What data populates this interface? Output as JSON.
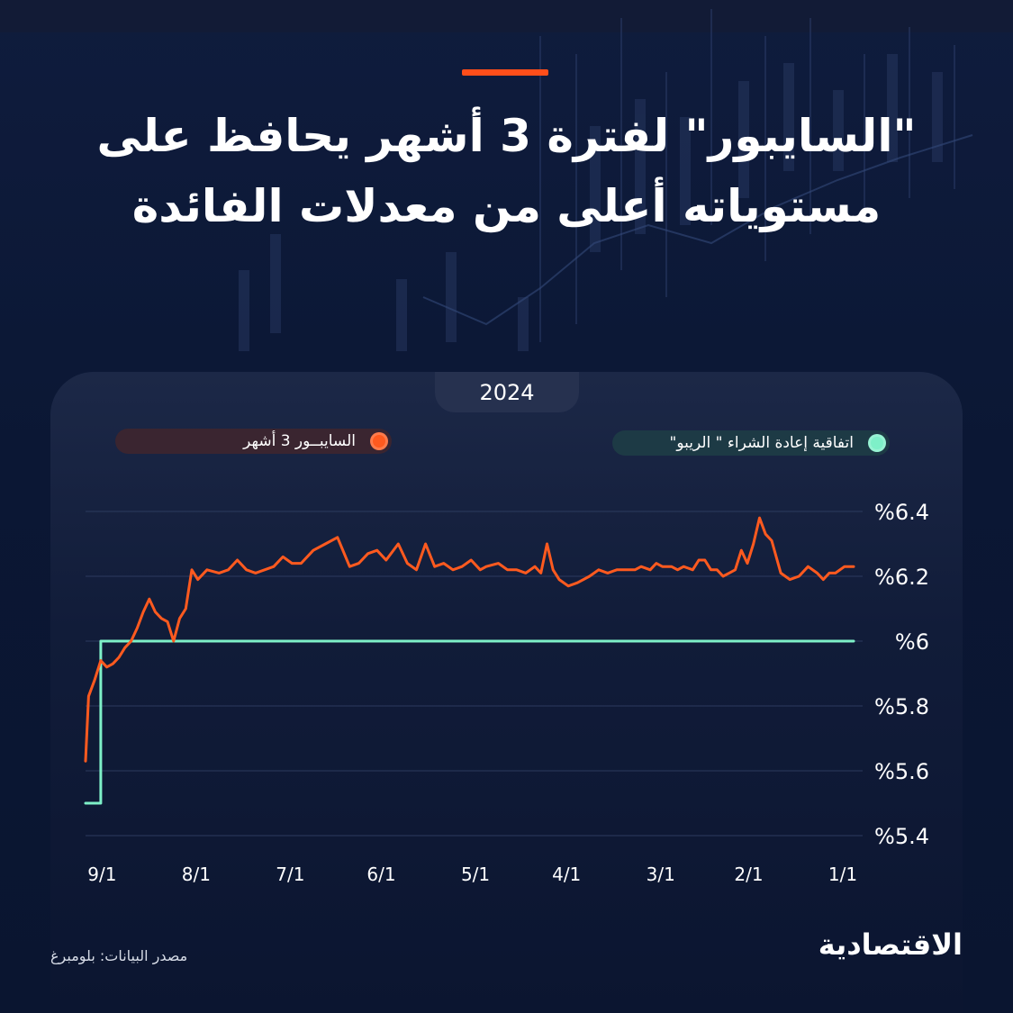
{
  "title_line1": "\"السايبور\" لفترة 3 أشهر يحافظ على",
  "title_line2": "مستوياته أعلى من معدلات الفائدة",
  "year": "2024",
  "source": "مصدر البيانات: بلومبرغ",
  "logo": "الاقتصادية",
  "colors": {
    "sibor": "#ff5a1f",
    "repo": "#7ef0c8",
    "accent": "#ff4e1a",
    "background": "#0b1734"
  },
  "chart_data": {
    "type": "line",
    "x_axis": "dates",
    "x_direction": "right-to-left",
    "x_range": [
      "2024-01-01",
      "2024-09-10"
    ],
    "xticks": [
      {
        "date": "2024-01-01",
        "label": "1/1"
      },
      {
        "date": "2024-02-01",
        "label": "2/1"
      },
      {
        "date": "2024-03-01",
        "label": "3/1"
      },
      {
        "date": "2024-04-01",
        "label": "4/1"
      },
      {
        "date": "2024-05-01",
        "label": "5/1"
      },
      {
        "date": "2024-06-01",
        "label": "6/1"
      },
      {
        "date": "2024-07-01",
        "label": "7/1"
      },
      {
        "date": "2024-08-01",
        "label": "8/1"
      },
      {
        "date": "2024-09-01",
        "label": "9/1"
      }
    ],
    "ylim": [
      5.4,
      6.4
    ],
    "yticks": [
      {
        "value": 5.4,
        "label": "%5.4"
      },
      {
        "value": 5.6,
        "label": "%5.6"
      },
      {
        "value": 5.8,
        "label": "%5.8"
      },
      {
        "value": 6.0,
        "label": "%6"
      },
      {
        "value": 6.2,
        "label": "%6.2"
      },
      {
        "value": 6.4,
        "label": "%6.4"
      }
    ],
    "grid": true,
    "series": [
      {
        "name": "السايبــور 3 أشهر",
        "color": "#ff5a1f",
        "points": [
          [
            "2024-01-01",
            6.23
          ],
          [
            "2024-01-04",
            6.23
          ],
          [
            "2024-01-07",
            6.21
          ],
          [
            "2024-01-09",
            6.21
          ],
          [
            "2024-01-11",
            6.19
          ],
          [
            "2024-01-13",
            6.21
          ],
          [
            "2024-01-16",
            6.23
          ],
          [
            "2024-01-19",
            6.2
          ],
          [
            "2024-01-22",
            6.19
          ],
          [
            "2024-01-25",
            6.21
          ],
          [
            "2024-01-28",
            6.31
          ],
          [
            "2024-01-30",
            6.33
          ],
          [
            "2024-02-01",
            6.38
          ],
          [
            "2024-02-03",
            6.3
          ],
          [
            "2024-02-05",
            6.24
          ],
          [
            "2024-02-07",
            6.28
          ],
          [
            "2024-02-09",
            6.22
          ],
          [
            "2024-02-11",
            6.21
          ],
          [
            "2024-02-13",
            6.2
          ],
          [
            "2024-02-15",
            6.22
          ],
          [
            "2024-02-17",
            6.22
          ],
          [
            "2024-02-19",
            6.25
          ],
          [
            "2024-02-21",
            6.25
          ],
          [
            "2024-02-23",
            6.22
          ],
          [
            "2024-02-26",
            6.23
          ],
          [
            "2024-02-28",
            6.22
          ],
          [
            "2024-03-01",
            6.23
          ],
          [
            "2024-03-04",
            6.23
          ],
          [
            "2024-03-06",
            6.24
          ],
          [
            "2024-03-08",
            6.22
          ],
          [
            "2024-03-11",
            6.23
          ],
          [
            "2024-03-13",
            6.22
          ],
          [
            "2024-03-16",
            6.22
          ],
          [
            "2024-03-19",
            6.22
          ],
          [
            "2024-03-22",
            6.21
          ],
          [
            "2024-03-25",
            6.22
          ],
          [
            "2024-03-28",
            6.2
          ],
          [
            "2024-04-01",
            6.18
          ],
          [
            "2024-04-04",
            6.17
          ],
          [
            "2024-04-07",
            6.19
          ],
          [
            "2024-04-09",
            6.22
          ],
          [
            "2024-04-11",
            6.3
          ],
          [
            "2024-04-13",
            6.21
          ],
          [
            "2024-04-15",
            6.23
          ],
          [
            "2024-04-18",
            6.21
          ],
          [
            "2024-04-21",
            6.22
          ],
          [
            "2024-04-24",
            6.22
          ],
          [
            "2024-04-27",
            6.24
          ],
          [
            "2024-05-01",
            6.23
          ],
          [
            "2024-05-03",
            6.22
          ],
          [
            "2024-05-06",
            6.25
          ],
          [
            "2024-05-09",
            6.23
          ],
          [
            "2024-05-12",
            6.22
          ],
          [
            "2024-05-15",
            6.24
          ],
          [
            "2024-05-18",
            6.23
          ],
          [
            "2024-05-21",
            6.3
          ],
          [
            "2024-05-24",
            6.22
          ],
          [
            "2024-05-27",
            6.24
          ],
          [
            "2024-05-30",
            6.3
          ],
          [
            "2024-06-03",
            6.25
          ],
          [
            "2024-06-06",
            6.28
          ],
          [
            "2024-06-09",
            6.27
          ],
          [
            "2024-06-12",
            6.24
          ],
          [
            "2024-06-15",
            6.23
          ],
          [
            "2024-06-19",
            6.32
          ],
          [
            "2024-06-23",
            6.3
          ],
          [
            "2024-06-27",
            6.28
          ],
          [
            "2024-07-01",
            6.24
          ],
          [
            "2024-07-04",
            6.24
          ],
          [
            "2024-07-07",
            6.26
          ],
          [
            "2024-07-10",
            6.23
          ],
          [
            "2024-07-13",
            6.22
          ],
          [
            "2024-07-16",
            6.21
          ],
          [
            "2024-07-19",
            6.22
          ],
          [
            "2024-07-22",
            6.25
          ],
          [
            "2024-07-25",
            6.22
          ],
          [
            "2024-07-28",
            6.21
          ],
          [
            "2024-08-01",
            6.22
          ],
          [
            "2024-08-04",
            6.19
          ],
          [
            "2024-08-06",
            6.22
          ],
          [
            "2024-08-08",
            6.1
          ],
          [
            "2024-08-10",
            6.07
          ],
          [
            "2024-08-12",
            6.0
          ],
          [
            "2024-08-14",
            6.06
          ],
          [
            "2024-08-16",
            6.07
          ],
          [
            "2024-08-18",
            6.09
          ],
          [
            "2024-08-20",
            6.13
          ],
          [
            "2024-08-22",
            6.09
          ],
          [
            "2024-08-24",
            6.04
          ],
          [
            "2024-08-26",
            6.0
          ],
          [
            "2024-08-28",
            5.98
          ],
          [
            "2024-08-30",
            5.95
          ],
          [
            "2024-09-01",
            5.93
          ],
          [
            "2024-09-03",
            5.92
          ],
          [
            "2024-09-05",
            5.94
          ],
          [
            "2024-09-07",
            5.88
          ],
          [
            "2024-09-09",
            5.83
          ],
          [
            "2024-09-10",
            5.63
          ]
        ]
      },
      {
        "name": "اتفاقية إعادة الشراء \" الريبو\"",
        "color": "#7ef0c8",
        "points": [
          [
            "2024-01-01",
            6.0
          ],
          [
            "2024-09-05",
            6.0
          ],
          [
            "2024-09-05",
            5.5
          ],
          [
            "2024-09-10",
            5.5
          ]
        ]
      }
    ]
  }
}
